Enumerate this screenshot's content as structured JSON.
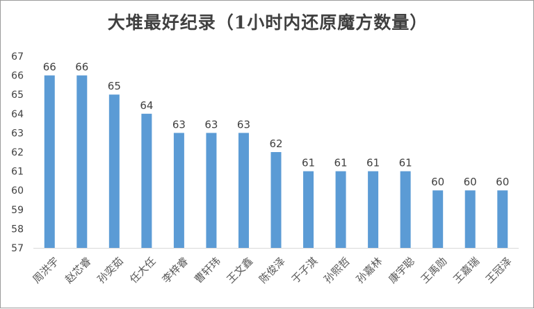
{
  "chart_data": {
    "type": "bar",
    "title": "大堆最好纪录（1小时内还原魔方数量）",
    "categories": [
      "周洪宇",
      "赵芯睿",
      "孙奕茹",
      "任大任",
      "李梓睿",
      "曹轩玮",
      "王文鑫",
      "陈俊泽",
      "于子淇",
      "孙熙哲",
      "孙嘉林",
      "康宇聪",
      "王禹勋",
      "王嘉瑞",
      "王冠泽"
    ],
    "values": [
      66,
      66,
      65,
      64,
      63,
      63,
      63,
      62,
      61,
      61,
      61,
      61,
      60,
      60,
      60
    ],
    "ylim": [
      57,
      67
    ],
    "yticks": [
      57,
      58,
      59,
      60,
      61,
      62,
      63,
      64,
      65,
      66,
      67
    ],
    "bar_color": "#5b9bd5",
    "grid": false,
    "legend": "none",
    "data_labels": true
  }
}
